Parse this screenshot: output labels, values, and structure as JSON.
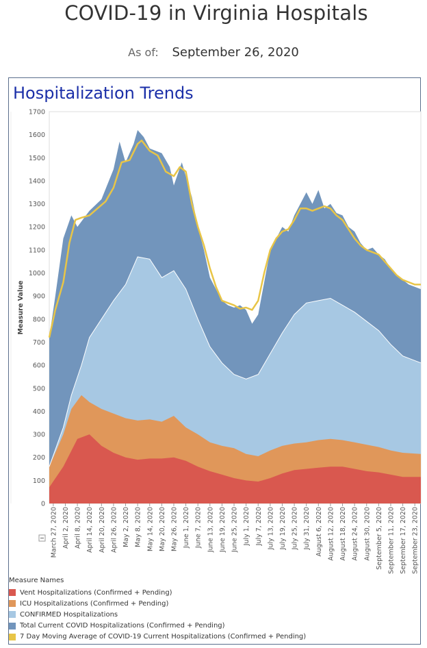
{
  "header": {
    "title": "COVID-19 in Virginia Hospitals",
    "as_of_label": "As of:",
    "as_of_date": "September 26, 2020"
  },
  "panel": {
    "title": "Hospitalization Trends"
  },
  "chart_data": {
    "type": "area",
    "ylabel": "Measure Value",
    "ylim": [
      0,
      1700
    ],
    "yticks": [
      0,
      100,
      200,
      300,
      400,
      500,
      600,
      700,
      800,
      900,
      1000,
      1100,
      1200,
      1300,
      1400,
      1500,
      1600,
      1700
    ],
    "x_start": "2020-03-25",
    "x_end": "2020-09-26",
    "xtick_labels": [
      "March 27, 2020",
      "April 2, 2020",
      "April 8, 2020",
      "April 14, 2020",
      "April 20, 2020",
      "April 26, 2020",
      "May 2, 2020",
      "May 8, 2020",
      "May 14, 2020",
      "May 20, 2020",
      "May 26, 2020",
      "June 1, 2020",
      "June 7, 2020",
      "June 13, 2020",
      "June 19, 2020",
      "June 25, 2020",
      "July 1, 2020",
      "July 7, 2020",
      "July 13, 2020",
      "July 19, 2020",
      "July 25, 2020",
      "July 31, 2020",
      "August 6, 2020",
      "August 12, 2020",
      "August 18, 2020",
      "August 24, 2020",
      "August 30, 2020",
      "September 5, 2020",
      "September 11, 2020",
      "September 17, 2020",
      "September 23, 2020"
    ],
    "grid": false,
    "legend_position": "bottom-left",
    "legend_title": "Measure Names",
    "series": [
      {
        "key": "vent",
        "name": "Vent Hospitalizations (Confirmed + Pending)",
        "color": "#d9584f",
        "points": [
          [
            "2020-03-25",
            70
          ],
          [
            "2020-04-01",
            160
          ],
          [
            "2020-04-08",
            280
          ],
          [
            "2020-04-14",
            300
          ],
          [
            "2020-04-20",
            250
          ],
          [
            "2020-04-26",
            220
          ],
          [
            "2020-05-02",
            200
          ],
          [
            "2020-05-08",
            190
          ],
          [
            "2020-05-14",
            195
          ],
          [
            "2020-05-20",
            195
          ],
          [
            "2020-05-26",
            200
          ],
          [
            "2020-06-01",
            185
          ],
          [
            "2020-06-07",
            160
          ],
          [
            "2020-06-13",
            140
          ],
          [
            "2020-06-19",
            125
          ],
          [
            "2020-06-25",
            110
          ],
          [
            "2020-07-01",
            100
          ],
          [
            "2020-07-07",
            95
          ],
          [
            "2020-07-13",
            110
          ],
          [
            "2020-07-19",
            130
          ],
          [
            "2020-07-25",
            145
          ],
          [
            "2020-07-31",
            150
          ],
          [
            "2020-08-06",
            155
          ],
          [
            "2020-08-12",
            160
          ],
          [
            "2020-08-18",
            160
          ],
          [
            "2020-08-24",
            150
          ],
          [
            "2020-08-30",
            140
          ],
          [
            "2020-09-05",
            135
          ],
          [
            "2020-09-11",
            125
          ],
          [
            "2020-09-17",
            115
          ],
          [
            "2020-09-26",
            115
          ]
        ]
      },
      {
        "key": "icu",
        "name": "ICU Hospitalizations (Confirmed + Pending)",
        "color": "#e0975a",
        "points": [
          [
            "2020-03-25",
            160
          ],
          [
            "2020-04-01",
            300
          ],
          [
            "2020-04-05",
            410
          ],
          [
            "2020-04-10",
            470
          ],
          [
            "2020-04-14",
            440
          ],
          [
            "2020-04-20",
            410
          ],
          [
            "2020-04-26",
            390
          ],
          [
            "2020-05-02",
            370
          ],
          [
            "2020-05-08",
            360
          ],
          [
            "2020-05-14",
            365
          ],
          [
            "2020-05-20",
            355
          ],
          [
            "2020-05-26",
            380
          ],
          [
            "2020-06-01",
            330
          ],
          [
            "2020-06-07",
            300
          ],
          [
            "2020-06-13",
            265
          ],
          [
            "2020-06-19",
            250
          ],
          [
            "2020-06-25",
            240
          ],
          [
            "2020-07-01",
            215
          ],
          [
            "2020-07-07",
            205
          ],
          [
            "2020-07-13",
            230
          ],
          [
            "2020-07-19",
            250
          ],
          [
            "2020-07-25",
            260
          ],
          [
            "2020-07-31",
            265
          ],
          [
            "2020-08-06",
            275
          ],
          [
            "2020-08-12",
            280
          ],
          [
            "2020-08-18",
            275
          ],
          [
            "2020-08-24",
            265
          ],
          [
            "2020-08-30",
            255
          ],
          [
            "2020-09-05",
            245
          ],
          [
            "2020-09-11",
            230
          ],
          [
            "2020-09-17",
            220
          ],
          [
            "2020-09-26",
            215
          ]
        ]
      },
      {
        "key": "confirmed",
        "name": "CONFIRMED Hospitalizations",
        "color": "#a7c8e3",
        "points": [
          [
            "2020-03-25",
            160
          ],
          [
            "2020-04-01",
            330
          ],
          [
            "2020-04-05",
            470
          ],
          [
            "2020-04-10",
            600
          ],
          [
            "2020-04-14",
            720
          ],
          [
            "2020-04-20",
            800
          ],
          [
            "2020-04-26",
            880
          ],
          [
            "2020-05-02",
            950
          ],
          [
            "2020-05-08",
            1070
          ],
          [
            "2020-05-14",
            1060
          ],
          [
            "2020-05-20",
            980
          ],
          [
            "2020-05-26",
            1010
          ],
          [
            "2020-06-01",
            930
          ],
          [
            "2020-06-07",
            800
          ],
          [
            "2020-06-13",
            680
          ],
          [
            "2020-06-19",
            610
          ],
          [
            "2020-06-25",
            560
          ],
          [
            "2020-07-01",
            540
          ],
          [
            "2020-07-07",
            560
          ],
          [
            "2020-07-13",
            650
          ],
          [
            "2020-07-19",
            740
          ],
          [
            "2020-07-25",
            820
          ],
          [
            "2020-07-31",
            870
          ],
          [
            "2020-08-06",
            880
          ],
          [
            "2020-08-12",
            890
          ],
          [
            "2020-08-18",
            860
          ],
          [
            "2020-08-24",
            830
          ],
          [
            "2020-08-30",
            790
          ],
          [
            "2020-09-05",
            750
          ],
          [
            "2020-09-11",
            690
          ],
          [
            "2020-09-17",
            640
          ],
          [
            "2020-09-26",
            610
          ]
        ]
      },
      {
        "key": "total",
        "name": "Total Current COVID Hospitalizations (Confirmed + Pending)",
        "color": "#7295bc",
        "points": [
          [
            "2020-03-25",
            720
          ],
          [
            "2020-03-28",
            900
          ],
          [
            "2020-04-01",
            1150
          ],
          [
            "2020-04-05",
            1250
          ],
          [
            "2020-04-08",
            1200
          ],
          [
            "2020-04-14",
            1270
          ],
          [
            "2020-04-20",
            1320
          ],
          [
            "2020-04-26",
            1450
          ],
          [
            "2020-04-29",
            1570
          ],
          [
            "2020-05-02",
            1480
          ],
          [
            "2020-05-06",
            1560
          ],
          [
            "2020-05-08",
            1620
          ],
          [
            "2020-05-11",
            1590
          ],
          [
            "2020-05-14",
            1540
          ],
          [
            "2020-05-20",
            1520
          ],
          [
            "2020-05-24",
            1460
          ],
          [
            "2020-05-26",
            1380
          ],
          [
            "2020-05-30",
            1480
          ],
          [
            "2020-06-01",
            1420
          ],
          [
            "2020-06-04",
            1330
          ],
          [
            "2020-06-07",
            1200
          ],
          [
            "2020-06-10",
            1100
          ],
          [
            "2020-06-13",
            980
          ],
          [
            "2020-06-16",
            930
          ],
          [
            "2020-06-19",
            880
          ],
          [
            "2020-06-22",
            860
          ],
          [
            "2020-06-25",
            850
          ],
          [
            "2020-06-28",
            860
          ],
          [
            "2020-07-01",
            840
          ],
          [
            "2020-07-04",
            780
          ],
          [
            "2020-07-07",
            820
          ],
          [
            "2020-07-10",
            960
          ],
          [
            "2020-07-13",
            1100
          ],
          [
            "2020-07-16",
            1150
          ],
          [
            "2020-07-19",
            1200
          ],
          [
            "2020-07-22",
            1180
          ],
          [
            "2020-07-25",
            1250
          ],
          [
            "2020-07-28",
            1300
          ],
          [
            "2020-07-31",
            1350
          ],
          [
            "2020-08-03",
            1300
          ],
          [
            "2020-08-06",
            1360
          ],
          [
            "2020-08-09",
            1280
          ],
          [
            "2020-08-12",
            1300
          ],
          [
            "2020-08-15",
            1260
          ],
          [
            "2020-08-18",
            1250
          ],
          [
            "2020-08-21",
            1200
          ],
          [
            "2020-08-24",
            1180
          ],
          [
            "2020-08-27",
            1130
          ],
          [
            "2020-08-30",
            1100
          ],
          [
            "2020-09-02",
            1110
          ],
          [
            "2020-09-05",
            1080
          ],
          [
            "2020-09-08",
            1060
          ],
          [
            "2020-09-11",
            1020
          ],
          [
            "2020-09-14",
            990
          ],
          [
            "2020-09-17",
            970
          ],
          [
            "2020-09-20",
            950
          ],
          [
            "2020-09-23",
            940
          ],
          [
            "2020-09-26",
            930
          ]
        ]
      },
      {
        "key": "avg",
        "name": "7 Day Moving Average of COVID-19 Current Hospitalizations (Confirmed + Pending)",
        "color": "#e8c547",
        "points": [
          [
            "2020-03-25",
            720
          ],
          [
            "2020-03-28",
            840
          ],
          [
            "2020-04-01",
            960
          ],
          [
            "2020-04-04",
            1130
          ],
          [
            "2020-04-07",
            1230
          ],
          [
            "2020-04-10",
            1240
          ],
          [
            "2020-04-14",
            1250
          ],
          [
            "2020-04-18",
            1280
          ],
          [
            "2020-04-22",
            1310
          ],
          [
            "2020-04-26",
            1370
          ],
          [
            "2020-04-30",
            1480
          ],
          [
            "2020-05-04",
            1490
          ],
          [
            "2020-05-08",
            1560
          ],
          [
            "2020-05-10",
            1575
          ],
          [
            "2020-05-14",
            1530
          ],
          [
            "2020-05-18",
            1510
          ],
          [
            "2020-05-22",
            1440
          ],
          [
            "2020-05-26",
            1420
          ],
          [
            "2020-05-29",
            1460
          ],
          [
            "2020-06-01",
            1440
          ],
          [
            "2020-06-04",
            1300
          ],
          [
            "2020-06-07",
            1200
          ],
          [
            "2020-06-10",
            1120
          ],
          [
            "2020-06-13",
            1020
          ],
          [
            "2020-06-16",
            940
          ],
          [
            "2020-06-19",
            880
          ],
          [
            "2020-06-22",
            870
          ],
          [
            "2020-06-25",
            860
          ],
          [
            "2020-06-28",
            845
          ],
          [
            "2020-07-01",
            850
          ],
          [
            "2020-07-04",
            840
          ],
          [
            "2020-07-07",
            880
          ],
          [
            "2020-07-10",
            1000
          ],
          [
            "2020-07-13",
            1100
          ],
          [
            "2020-07-16",
            1150
          ],
          [
            "2020-07-19",
            1180
          ],
          [
            "2020-07-22",
            1190
          ],
          [
            "2020-07-25",
            1230
          ],
          [
            "2020-07-28",
            1280
          ],
          [
            "2020-07-31",
            1280
          ],
          [
            "2020-08-03",
            1270
          ],
          [
            "2020-08-06",
            1280
          ],
          [
            "2020-08-09",
            1290
          ],
          [
            "2020-08-12",
            1280
          ],
          [
            "2020-08-15",
            1250
          ],
          [
            "2020-08-18",
            1230
          ],
          [
            "2020-08-21",
            1190
          ],
          [
            "2020-08-24",
            1150
          ],
          [
            "2020-08-27",
            1120
          ],
          [
            "2020-08-30",
            1100
          ],
          [
            "2020-09-02",
            1090
          ],
          [
            "2020-09-05",
            1080
          ],
          [
            "2020-09-08",
            1050
          ],
          [
            "2020-09-11",
            1020
          ],
          [
            "2020-09-14",
            990
          ],
          [
            "2020-09-17",
            970
          ],
          [
            "2020-09-20",
            960
          ],
          [
            "2020-09-23",
            950
          ],
          [
            "2020-09-26",
            950
          ]
        ]
      }
    ]
  }
}
